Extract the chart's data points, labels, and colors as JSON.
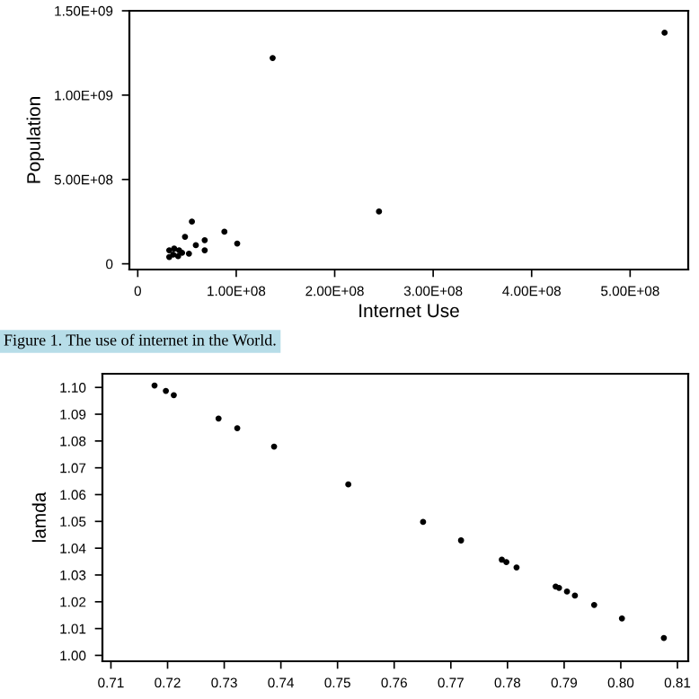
{
  "chart_data": [
    {
      "type": "scatter",
      "xlabel": "Internet Use",
      "ylabel": "Population",
      "annotations": [
        "Figure 1. The use of internet in the World."
      ],
      "x": [
        137000000,
        535000000,
        245000000,
        55000000,
        88000000,
        48000000,
        68000000,
        101000000,
        59000000,
        68000000,
        52000000,
        32000000,
        37000000,
        42000000,
        36000000,
        32000000,
        41000000,
        45000000
      ],
      "series": [
        {
          "color": "#000000",
          "values": [
            1220000000,
            1370000000,
            310000000,
            250000000,
            190000000,
            160000000,
            140000000,
            120000000,
            110000000,
            80000000,
            60000000,
            80000000,
            90000000,
            80000000,
            55000000,
            40000000,
            45000000,
            65000000
          ]
        }
      ],
      "xlim": [
        -8500000,
        559000000
      ],
      "ylim": [
        -34000000,
        1500000000
      ],
      "xticks": [
        0,
        {
          "value": 100000000,
          "label": "1.00E+08"
        },
        {
          "value": 200000000,
          "label": "2.00E+08"
        },
        {
          "value": 300000000,
          "label": "3.00E+08"
        },
        {
          "value": 400000000,
          "label": "4.00E+08"
        },
        {
          "value": 500000000,
          "label": "5.00E+08"
        }
      ],
      "yticks": [
        0,
        {
          "value": 500000000,
          "label": "5.00E+08"
        },
        {
          "value": 1000000000,
          "label": "1.00E+09"
        },
        {
          "value": 1500000000,
          "label": "1.50E+09"
        }
      ],
      "marker": "circle",
      "grid": false,
      "legend": false
    },
    {
      "type": "scatter",
      "ylabel": "lamda",
      "x": [
        0.7177,
        0.7197,
        0.7211,
        0.729,
        0.7323,
        0.7388,
        0.7519,
        0.7651,
        0.7718,
        0.779,
        0.7798,
        0.7816,
        0.7885,
        0.7891,
        0.7905,
        0.7919,
        0.7953,
        0.8002,
        0.8076
      ],
      "series": [
        {
          "color": "#000000",
          "values": [
            1.1007,
            1.0987,
            1.0971,
            1.0884,
            1.0848,
            1.0779,
            1.0638,
            1.0498,
            1.0429,
            1.0357,
            1.0348,
            1.0328,
            1.0257,
            1.0252,
            1.0238,
            1.0223,
            1.0188,
            1.0138,
            1.0065
          ]
        }
      ],
      "xlim": [
        0.7085,
        0.8119
      ],
      "ylim": [
        0.9978,
        1.1051
      ],
      "xticks": [
        0.71,
        0.72,
        0.73,
        0.74,
        0.75,
        0.76,
        0.77,
        0.78,
        0.79,
        {
          "value": 0.8,
          "label": "0.80"
        },
        0.81
      ],
      "yticks": [
        {
          "value": 1.0,
          "label": "1.00"
        },
        1.01,
        1.02,
        1.03,
        1.04,
        1.05,
        1.06,
        1.07,
        1.08,
        1.09,
        {
          "value": 1.1,
          "label": "1.10"
        }
      ],
      "marker": "circle",
      "grid": false,
      "legend": false
    }
  ]
}
